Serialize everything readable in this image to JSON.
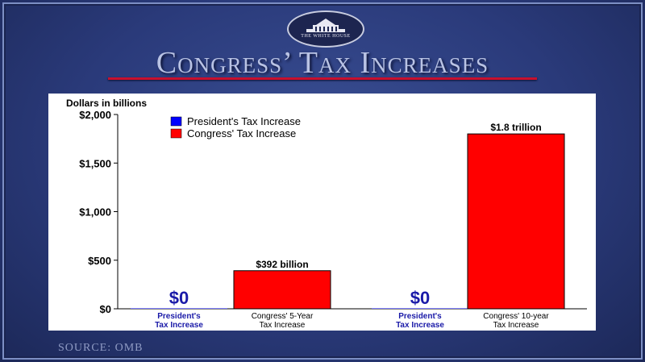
{
  "header": {
    "seal_text": "THE WHITE HOUSE",
    "title": "Congress’ Tax Increases"
  },
  "footer": {
    "source": "SOURCE: OMB"
  },
  "colors": {
    "president": "#0000ff",
    "congress": "#ff0000",
    "president_label": "#1a1aa8",
    "title_rule": "#c8102e"
  },
  "chart_data": {
    "type": "bar",
    "title": "",
    "ylabel": "Dollars in billions",
    "ylim": [
      0,
      2000
    ],
    "yticks": [
      {
        "value": 0,
        "label": "$0"
      },
      {
        "value": 500,
        "label": "$500"
      },
      {
        "value": 1000,
        "label": "$1,000"
      },
      {
        "value": 1500,
        "label": "$1,500"
      },
      {
        "value": 2000,
        "label": "$2,000"
      }
    ],
    "legend": {
      "placement": "top-left",
      "entries": [
        {
          "name": "President's Tax Increase",
          "series": "president"
        },
        {
          "name": "Congress' Tax Increase",
          "series": "congress"
        }
      ]
    },
    "bars": [
      {
        "category": [
          "President's",
          "Tax Increase"
        ],
        "series": "president",
        "value": 0,
        "label": "$0"
      },
      {
        "category": [
          "Congress' 5-Year",
          "Tax Increase"
        ],
        "series": "congress",
        "value": 392,
        "label": "$392 billion"
      },
      {
        "category": [
          "President's",
          "Tax Increase"
        ],
        "series": "president",
        "value": 0,
        "label": "$0"
      },
      {
        "category": [
          "Congress' 10-year",
          "Tax Increase"
        ],
        "series": "congress",
        "value": 1800,
        "label": "$1.8 trillion"
      }
    ]
  }
}
